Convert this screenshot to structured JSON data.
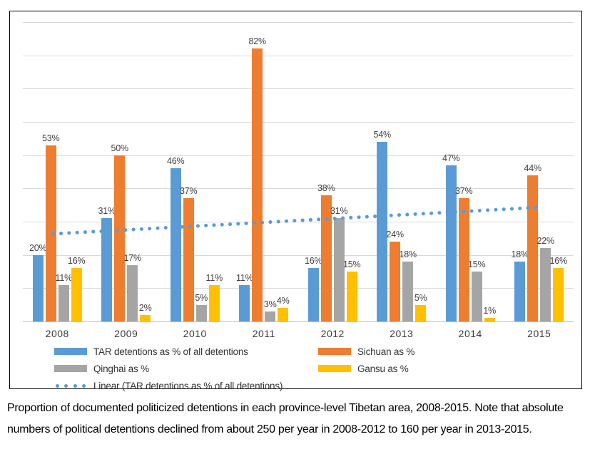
{
  "figure": {
    "caption": "Proportion of documented politicized detentions in each province-level Tibetan area, 2008-2015. Note that absolute numbers of political detentions declined from about 250 per year in 2008-2012 to 160 per year in 2013-2015."
  },
  "colors": {
    "tar_blue": "#5B9BD5",
    "sichuan_orange": "#ED7D31",
    "qinghai_gray": "#A5A5A5",
    "gansu_yellow": "#FFC000",
    "trend_blue": "#5B9BD5",
    "gridline": "#D9D9D9",
    "axis_line": "#BFBFBF",
    "label_text": "#404040",
    "figure_border": "#000000"
  },
  "chart_data": {
    "type": "bar",
    "title": "",
    "xlabel": "",
    "ylabel": "",
    "categories": [
      "2008",
      "2009",
      "2010",
      "2011",
      "2012",
      "2013",
      "2014",
      "2015"
    ],
    "series": [
      {
        "key": "tar",
        "name": "TAR detentions as % of all detentions",
        "color": "#5B9BD5",
        "values": [
          20,
          31,
          46,
          11,
          16,
          54,
          47,
          18
        ]
      },
      {
        "key": "sichuan",
        "name": "Sichuan as %",
        "color": "#ED7D31",
        "values": [
          53,
          50,
          37,
          82,
          38,
          24,
          37,
          44
        ]
      },
      {
        "key": "qinghai",
        "name": "Qinghai as %",
        "color": "#A5A5A5",
        "values": [
          11,
          17,
          5,
          3,
          31,
          18,
          15,
          22
        ]
      },
      {
        "key": "gansu",
        "name": "Gansu as %",
        "color": "#FFC000",
        "values": [
          16,
          2,
          11,
          4,
          15,
          5,
          1,
          16
        ]
      }
    ],
    "trendline": {
      "key": "linear-tar",
      "name": "Linear (TAR detentions as % of all detentions)",
      "of_series": "TAR detentions as % of all detentions",
      "color": "#5B9BD5",
      "style": "dotted",
      "start_value": 26.4,
      "end_value": 34.3
    },
    "data_labels_suffix": "%",
    "ylim": [
      0,
      90
    ],
    "grid_interval": 10,
    "grid": true,
    "y_axis_labels_shown": false,
    "legend_position": "bottom"
  }
}
